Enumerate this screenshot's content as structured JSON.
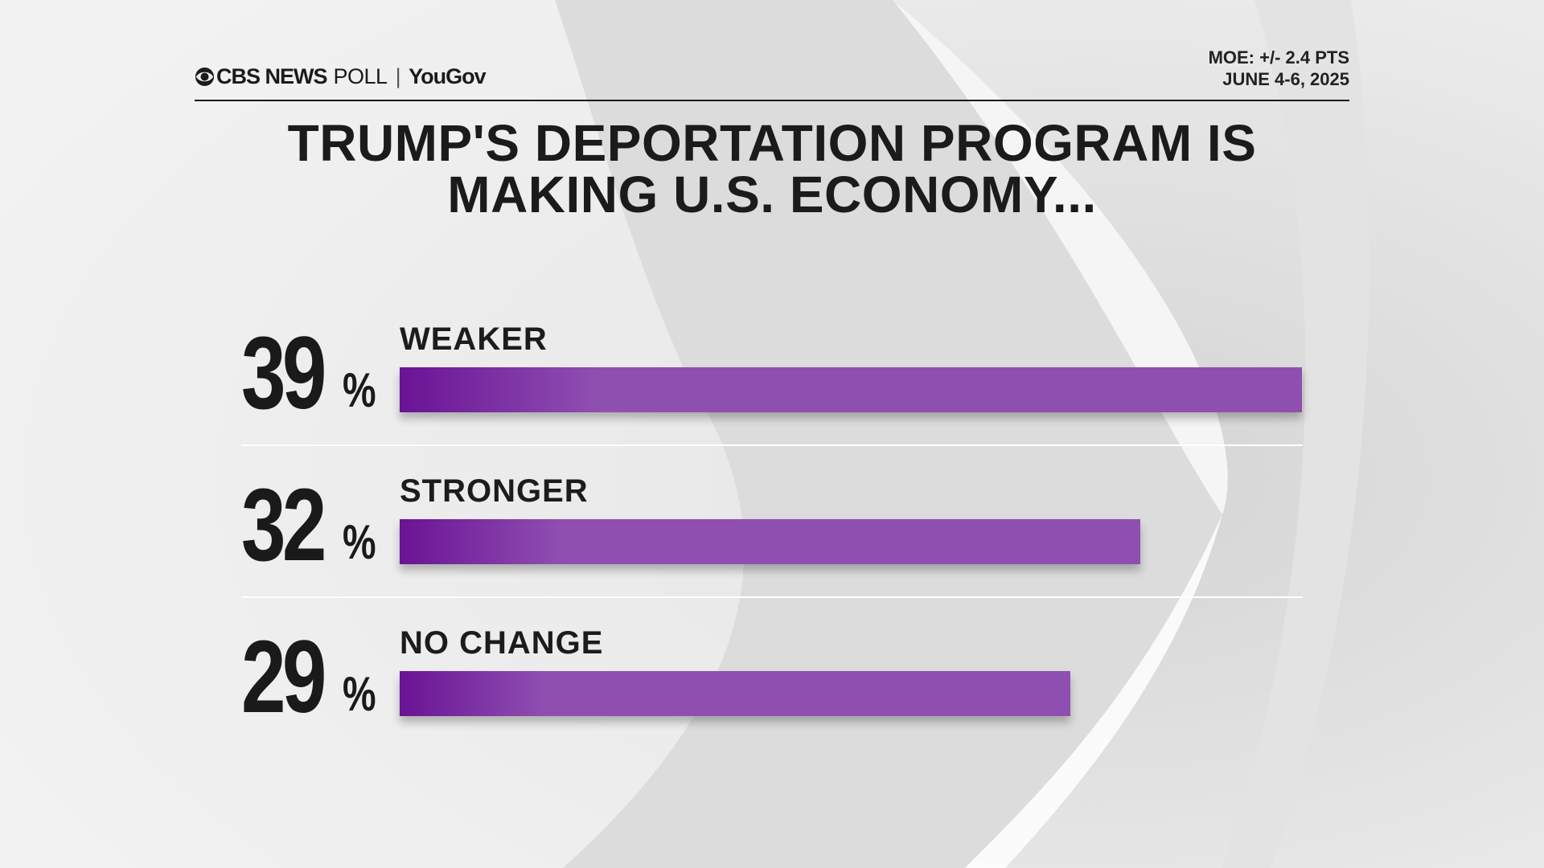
{
  "header": {
    "brand_network": "CBS NEWS",
    "brand_poll": "POLL",
    "brand_separator": "|",
    "brand_partner": "YouGov",
    "moe": "MOE: +/- 2.4 PTS",
    "date": "JUNE 4-6, 2025"
  },
  "colors": {
    "bar_start": "#6a1395",
    "bar_end": "#8f4fb1",
    "text": "#1b1b1b",
    "background": "#ececec"
  },
  "chart_data": {
    "type": "bar",
    "orientation": "horizontal",
    "title_lines": [
      "TRUMP'S DEPORTATION PROGRAM IS",
      "MAKING U.S. ECONOMY..."
    ],
    "categories": [
      "WEAKER",
      "STRONGER",
      "NO CHANGE"
    ],
    "values": [
      39,
      32,
      29
    ],
    "value_labels": [
      "39",
      "32",
      "29"
    ],
    "unit": "%",
    "xlim": [
      0,
      39
    ],
    "grid": false,
    "legend": "none"
  }
}
